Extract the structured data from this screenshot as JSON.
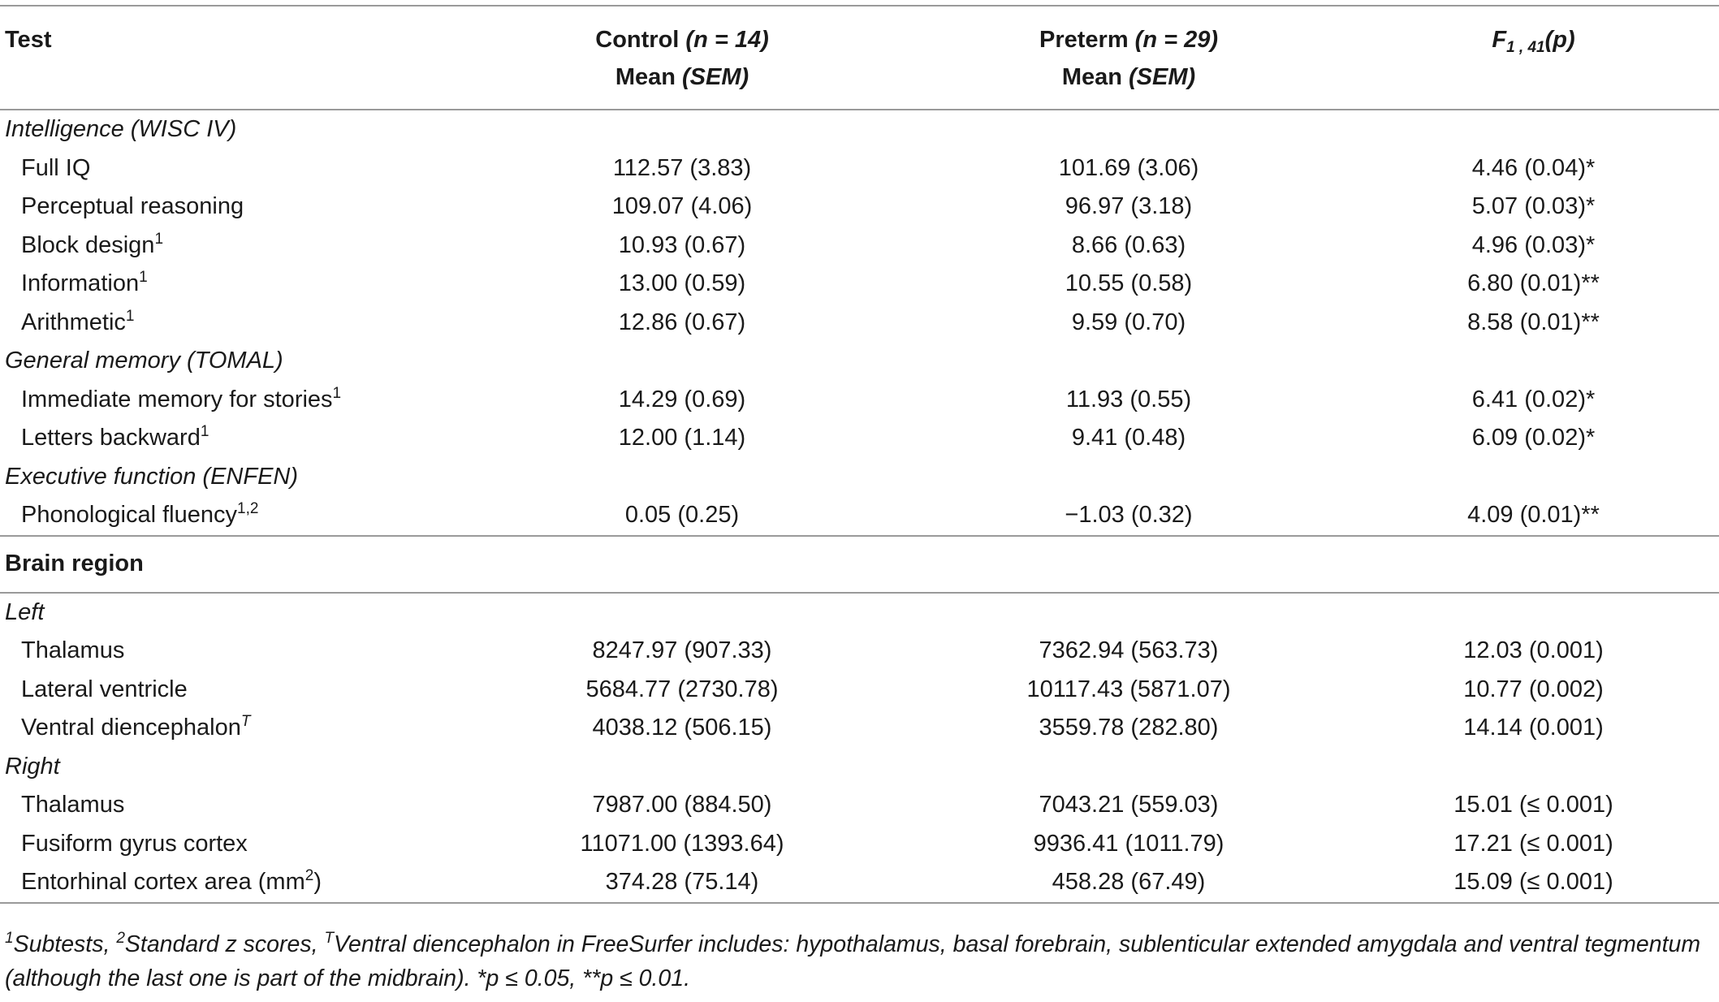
{
  "header": {
    "test": "Test",
    "control_line1_a": "Control",
    "control_line1_b": "(n = 14)",
    "control_line2_a": "Mean",
    "control_line2_b": "(SEM)",
    "preterm_line1_a": "Preterm",
    "preterm_line1_b": "(n = 29)",
    "preterm_line2_a": "Mean",
    "preterm_line2_b": "(SEM)",
    "f_main": "F",
    "f_sub": "1 , 41",
    "f_p": "(p)"
  },
  "sections": {
    "intelligence": "Intelligence (WISC IV)",
    "memory": "General memory (TOMAL)",
    "executive": "Executive function (ENFEN)",
    "brain": "Brain region",
    "left": "Left",
    "right": "Right"
  },
  "rows": {
    "full_iq": {
      "name": "Full IQ",
      "sup": "",
      "control": "112.57 (3.83)",
      "preterm": "101.69 (3.06)",
      "f": "4.46 (0.04)*"
    },
    "perceptual": {
      "name": "Perceptual reasoning",
      "sup": "",
      "control": "109.07 (4.06)",
      "preterm": "96.97 (3.18)",
      "f": "5.07 (0.03)*"
    },
    "block": {
      "name": "Block design",
      "sup": "1",
      "control": "10.93 (0.67)",
      "preterm": "8.66 (0.63)",
      "f": "4.96 (0.03)*"
    },
    "information": {
      "name": "Information",
      "sup": "1",
      "control": "13.00 (0.59)",
      "preterm": "10.55 (0.58)",
      "f": "6.80 (0.01)**"
    },
    "arithmetic": {
      "name": "Arithmetic",
      "sup": "1",
      "control": "12.86 (0.67)",
      "preterm": "9.59 (0.70)",
      "f": "8.58 (0.01)**"
    },
    "stories": {
      "name": "Immediate memory for stories",
      "sup": "1",
      "control": "14.29 (0.69)",
      "preterm": "11.93 (0.55)",
      "f": "6.41 (0.02)*"
    },
    "letters": {
      "name": "Letters backward",
      "sup": "1",
      "control": "12.00 (1.14)",
      "preterm": "9.41 (0.48)",
      "f": "6.09 (0.02)*"
    },
    "phonological": {
      "name": "Phonological fluency",
      "sup": "1,2",
      "control": "0.05 (0.25)",
      "preterm": "−1.03 (0.32)",
      "f": "4.09 (0.01)**"
    },
    "l_thalamus": {
      "name": "Thalamus",
      "sup": "",
      "control": "8247.97 (907.33)",
      "preterm": "7362.94 (563.73)",
      "f": "12.03 (0.001)"
    },
    "l_ventricle": {
      "name": "Lateral ventricle",
      "sup": "",
      "control": "5684.77 (2730.78)",
      "preterm": "10117.43 (5871.07)",
      "f": "10.77 (0.002)"
    },
    "l_diencephalon": {
      "name": "Ventral diencephalon",
      "sup": "T",
      "control": "4038.12 (506.15)",
      "preterm": "3559.78 (282.80)",
      "f": "14.14 (0.001)"
    },
    "r_thalamus": {
      "name": "Thalamus",
      "sup": "",
      "control": "7987.00 (884.50)",
      "preterm": "7043.21 (559.03)",
      "f": "15.01 (≤ 0.001)"
    },
    "r_fusiform": {
      "name": "Fusiform gyrus cortex",
      "sup": "",
      "control": "11071.00 (1393.64)",
      "preterm": "9936.41 (1011.79)",
      "f": "17.21 (≤ 0.001)"
    },
    "r_entorhinal": {
      "name": "Entorhinal cortex area (mm",
      "sup": "2",
      "name_tail": ")",
      "control": "374.28 (75.14)",
      "preterm": "458.28 (67.49)",
      "f": "15.09 (≤ 0.001)"
    }
  },
  "footnote": {
    "sup1": "1",
    "t1": "Subtests, ",
    "sup2": "2",
    "t2": "Standard z scores, ",
    "sup3": "T",
    "t3": "Ventral diencephalon in FreeSurfer includes: hypothalamus, basal forebrain, sublenticular extended amygdala and ventral tegmentum (although the last one is part of the midbrain). ",
    "t4": "*p ≤ 0.05, **p ≤ 0.01."
  }
}
